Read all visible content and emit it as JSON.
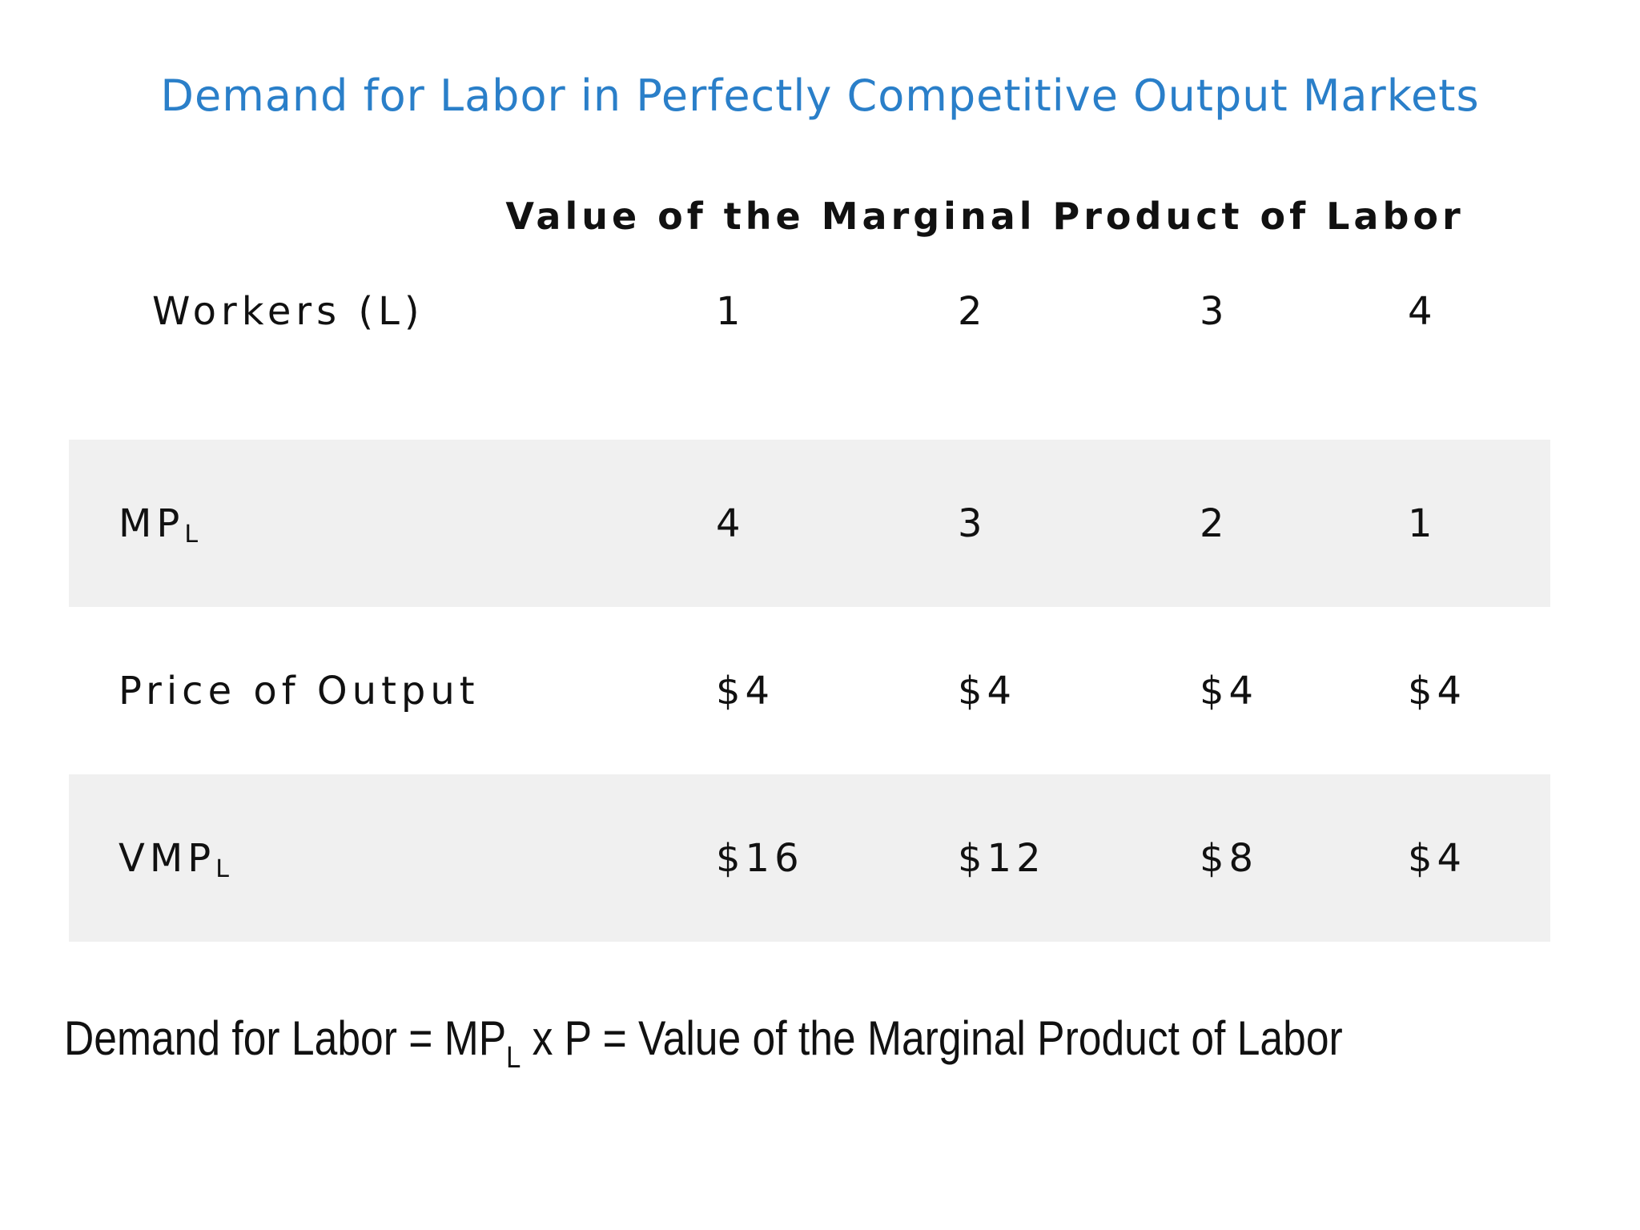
{
  "title": "Demand for Labor in Perfectly Competitive Output Markets",
  "table": {
    "heading": "Value of the Marginal Product of Labor",
    "header_row": {
      "label": "Workers (L)",
      "values": [
        "1",
        "2",
        "3",
        "4"
      ]
    },
    "rows": [
      {
        "label": "MP",
        "label_sub": "L",
        "values": [
          "4",
          "3",
          "2",
          "1"
        ]
      },
      {
        "label": "Price of Output",
        "label_sub": "",
        "values": [
          "$4",
          "$4",
          "$4",
          "$4"
        ]
      },
      {
        "label": "VMP",
        "label_sub": "L",
        "values": [
          "$16",
          "$12",
          "$8",
          "$4"
        ]
      }
    ]
  },
  "formula": {
    "part1": "Demand for Labor = MP",
    "sub": "L",
    "part2": " x P = Value of the Marginal Product of Labor"
  },
  "colors": {
    "title": "#2a7fc9",
    "row_shading": "#f0f0f0",
    "text": "#111111"
  }
}
